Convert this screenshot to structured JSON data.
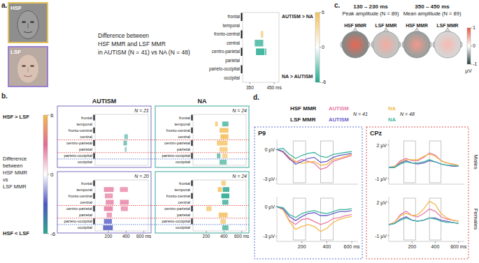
{
  "figure": {
    "images": [
      {
        "label": "HSF"
      },
      {
        "label": "LSF"
      }
    ]
  },
  "chart_data": [
    {
      "type": "heatmap",
      "panel": "a.",
      "title": [
        "Difference between",
        "HSF MMR and LSF MMR",
        "in AUTISM (N = 41) vs NA (N = 48)"
      ],
      "rows": [
        "frontal",
        "temporal",
        "fronto-central",
        "central",
        "centro-parietal",
        "parietal",
        "parieto-occipital",
        "occipital"
      ],
      "xlim": [
        320,
        470
      ],
      "xticks": [
        350,
        {
          "value": 450,
          "label": "450 ms"
        }
      ],
      "clusters": [
        {
          "row": 3,
          "start": 370,
          "end": 405,
          "t": -3.5
        },
        {
          "row": 4,
          "start": 375,
          "end": 410,
          "t": -4.5
        },
        {
          "row": 2,
          "start": 395,
          "end": 405,
          "t": 2.5
        },
        {
          "row": 4,
          "start": 412,
          "end": 418,
          "t": -3
        }
      ],
      "colors": [
        "#1fa88c",
        "#1fa88c",
        "#f3b94c",
        "#1fa88c"
      ],
      "colorbar": {
        "range": [
          -6,
          6
        ],
        "ticks": [
          6,
          0,
          -6
        ],
        "colors": [
          "#1fa88c",
          "#ffffff",
          "#f3c35a"
        ]
      },
      "annotations": [
        "AUTISM > NA",
        "NA > AUTISM"
      ]
    },
    {
      "type": "heatmap_grid",
      "panel": "b.",
      "columns": [
        "AUTISM",
        "NA"
      ],
      "rows": [
        "frontal",
        "temporal",
        "fronto-central",
        "central",
        "centro-parietal",
        "parietal",
        "parieto-occipital",
        "occipital"
      ],
      "xlim": [
        50,
        650
      ],
      "xticks": [
        200,
        400,
        {
          "value": 600,
          "label": "600 ms"
        }
      ],
      "colorbar": {
        "range": [
          -6,
          6
        ],
        "ticks": [
          6,
          0,
          -6
        ],
        "colors": [
          "#2aa88d",
          "#4c55c2",
          "#ffffff",
          "#e36b95",
          "#f3b94c"
        ]
      },
      "annotations": [
        "HSF > LSF",
        "HSF < LSF"
      ],
      "colorbar_title": [
        "Difference",
        "between",
        "HSF MMR",
        "vs",
        "LSF MMR"
      ],
      "maps": [
        {
          "n": "N = 21",
          "clusters": [
            {
              "row": 3,
              "start": 380,
              "end": 420,
              "t": -2.5
            },
            {
              "row": 4,
              "start": 370,
              "end": 410,
              "t": -3
            },
            {
              "row": 5,
              "start": 385,
              "end": 405,
              "t": -2
            }
          ],
          "colors": [
            "#3aa59a",
            "#3aa59a",
            "#3aa59a"
          ]
        },
        {
          "n": "N = 24",
          "clusters": [
            {
              "row": 1,
              "start": 300,
              "end": 330,
              "t": 3
            },
            {
              "row": 2,
              "start": 350,
              "end": 450,
              "t": 4
            },
            {
              "row": 3,
              "start": 360,
              "end": 450,
              "t": 4.5
            },
            {
              "row": 4,
              "start": 320,
              "end": 440,
              "t": 3.5
            },
            {
              "row": 5,
              "start": 350,
              "end": 440,
              "t": 3
            },
            {
              "row": 6,
              "start": 380,
              "end": 440,
              "t": 2.5
            },
            {
              "row": 1,
              "start": 380,
              "end": 450,
              "t": -3.5
            },
            {
              "row": 6,
              "start": 320,
              "end": 360,
              "t": -3
            },
            {
              "row": 7,
              "start": 350,
              "end": 430,
              "t": -3
            }
          ],
          "colors": [
            "#f3b94c",
            "#f3b94c",
            "#f3b94c",
            "#f3b94c",
            "#f3b94c",
            "#f3b94c",
            "#2aa88d",
            "#2aa88d",
            "#2aa88d"
          ]
        },
        {
          "n": "N = 20",
          "clusters": [
            {
              "row": 1,
              "start": 150,
              "end": 260,
              "t": 3.5
            },
            {
              "row": 2,
              "start": 160,
              "end": 250,
              "t": 3
            },
            {
              "row": 3,
              "start": 170,
              "end": 260,
              "t": 3.5
            },
            {
              "row": 4,
              "start": 150,
              "end": 250,
              "t": 4
            },
            {
              "row": 5,
              "start": 180,
              "end": 240,
              "t": 3
            },
            {
              "row": 1,
              "start": 330,
              "end": 420,
              "t": 3
            },
            {
              "row": 3,
              "start": 330,
              "end": 430,
              "t": 3.5
            },
            {
              "row": 4,
              "start": 340,
              "end": 420,
              "t": 3
            },
            {
              "row": 6,
              "start": 150,
              "end": 240,
              "t": -4
            },
            {
              "row": 7,
              "start": 140,
              "end": 250,
              "t": -4.5
            }
          ],
          "colors": [
            "#e36b95",
            "#e36b95",
            "#e36b95",
            "#e36b95",
            "#e36b95",
            "#e36b95",
            "#e36b95",
            "#e36b95",
            "#4c55c2",
            "#4c55c2"
          ]
        },
        {
          "n": "N = 24",
          "clusters": [
            {
              "row": 0,
              "start": 370,
              "end": 420,
              "t": 3
            },
            {
              "row": 1,
              "start": 330,
              "end": 375,
              "t": 4
            },
            {
              "row": 1,
              "start": 385,
              "end": 460,
              "t": -4.5
            },
            {
              "row": 2,
              "start": 370,
              "end": 460,
              "t": -5
            },
            {
              "row": 3,
              "start": 380,
              "end": 450,
              "t": -4
            },
            {
              "row": 4,
              "start": 200,
              "end": 260,
              "t": 3
            },
            {
              "row": 5,
              "start": 340,
              "end": 440,
              "t": 4
            },
            {
              "row": 6,
              "start": 360,
              "end": 420,
              "t": 3
            },
            {
              "row": 7,
              "start": 380,
              "end": 450,
              "t": -3.5
            }
          ],
          "colors": [
            "#f3b94c",
            "#f3b94c",
            "#2aa88d",
            "#2aa88d",
            "#2aa88d",
            "#f3b94c",
            "#f3b94c",
            "#f3b94c",
            "#2aa88d"
          ]
        }
      ]
    },
    {
      "type": "topomap",
      "panel": "c.",
      "windows": [
        {
          "title": "130 – 230 ms",
          "subtitle": "Peak amplitude (N = 89)",
          "maps": [
            {
              "label": "HSF MMR",
              "center": 0.9,
              "edge": -0.6
            },
            {
              "label": "LSF MMR",
              "center": 0.5,
              "edge": -0.3
            }
          ]
        },
        {
          "title": "350 – 450 ms",
          "subtitle": "Mean amplitude (N = 89)",
          "maps": [
            {
              "label": "HSF MMR",
              "center": 0.6,
              "edge": -0.5
            },
            {
              "label": "LSF MMR",
              "center": 0.4,
              "edge": -0.2
            }
          ]
        }
      ],
      "colorbar": {
        "range": [
          -1,
          1
        ],
        "ticks": [
          1,
          0,
          -1
        ],
        "unit": "µV",
        "colors": [
          "#24403f",
          "#ffffff",
          "#e8553f"
        ]
      }
    },
    {
      "type": "line",
      "panel": "d.",
      "x": [
        0,
        50,
        100,
        150,
        200,
        250,
        300,
        350,
        400,
        450,
        500,
        550,
        600
      ],
      "xlim": [
        0,
        650
      ],
      "xticks": [
        200,
        400,
        {
          "value": 600,
          "label": "600 ms"
        }
      ],
      "windows": [
        [
          130,
          230
        ],
        [
          350,
          450
        ]
      ],
      "legend_groups": [
        "HSF MMR",
        "LSF MMR"
      ],
      "legend_n": [
        "N = 41",
        "N = 48"
      ],
      "rows": [
        "Males",
        "Females"
      ],
      "series": [
        {
          "name": "AUTISM",
          "group": 0,
          "color": "#e97aa6"
        },
        {
          "name": "NA",
          "group": 0,
          "color": "#f2b84b"
        },
        {
          "name": "AUTISM",
          "group": 1,
          "color": "#6b5fc7"
        },
        {
          "name": "NA",
          "group": 1,
          "color": "#3fb6a0"
        }
      ],
      "electrodes": [
        {
          "name": "P9",
          "ylim": [
            -3.5,
            1
          ],
          "yticks": [
            {
              "value": 0,
              "label": "0 µV"
            },
            {
              "value": -3,
              "label": "-3 µV"
            }
          ],
          "panels": [
            {
              "values": [
                [
                  0,
                  -0.3,
                  -1.0,
                  -1.3,
                  -1.0,
                  -1.2,
                  -1.4,
                  -2.0,
                  -1.8,
                  -1.2,
                  -1.0,
                  -0.8,
                  -0.6
                ],
                [
                  0,
                  -0.2,
                  -0.8,
                  -1.2,
                  -1.4,
                  -1.3,
                  -1.2,
                  -1.6,
                  -1.5,
                  -1.0,
                  -0.9,
                  -0.7,
                  -0.5
                ],
                [
                  0,
                  -0.2,
                  -0.9,
                  -1.5,
                  -1.2,
                  -0.9,
                  -0.8,
                  -1.3,
                  -1.2,
                  -0.8,
                  -0.6,
                  -0.5,
                  -0.4
                ],
                [
                  0,
                  0.1,
                  -0.5,
                  -0.9,
                  -0.6,
                  -0.4,
                  -0.3,
                  -0.7,
                  -0.8,
                  -0.5,
                  -0.4,
                  -0.3,
                  -0.2
                ]
              ]
            },
            {
              "values": [
                [
                  0,
                  -0.3,
                  -1.4,
                  -1.8,
                  -1.3,
                  -1.2,
                  -1.5,
                  -1.8,
                  -1.6,
                  -1.2,
                  -1.1,
                  -0.9,
                  -0.8
                ],
                [
                  0,
                  -0.3,
                  -1.5,
                  -2.3,
                  -2.0,
                  -1.8,
                  -2.0,
                  -2.5,
                  -2.2,
                  -1.6,
                  -1.3,
                  -1.1,
                  -1.0
                ],
                [
                  0,
                  -0.2,
                  -1.0,
                  -1.4,
                  -1.0,
                  -0.7,
                  -0.6,
                  -0.9,
                  -0.9,
                  -0.7,
                  -0.5,
                  -0.5,
                  -0.4
                ],
                [
                  0,
                  -0.1,
                  -0.8,
                  -1.1,
                  -0.7,
                  -0.5,
                  -0.4,
                  -0.6,
                  -0.7,
                  -0.5,
                  -0.3,
                  -0.3,
                  -0.2
                ]
              ]
            }
          ]
        },
        {
          "name": "CPz",
          "ylim": [
            -1.5,
            2.5
          ],
          "yticks": [
            {
              "value": 2,
              "label": "2 µV"
            },
            {
              "value": -1,
              "label": "-1 µV"
            }
          ],
          "panels": [
            {
              "values": [
                [
                  0,
                  0.1,
                  0.6,
                  0.8,
                  0.6,
                  0.6,
                  0.9,
                  1.3,
                  1.1,
                  0.6,
                  0.4,
                  0.3,
                  0.2
                ],
                [
                  0,
                  0.1,
                  0.5,
                  0.7,
                  0.7,
                  0.7,
                  1.0,
                  1.2,
                  1.0,
                  0.6,
                  0.4,
                  0.3,
                  0.2
                ],
                [
                  0,
                  0.0,
                  0.4,
                  0.6,
                  0.4,
                  0.3,
                  0.4,
                  0.6,
                  0.5,
                  0.3,
                  0.2,
                  0.1,
                  0.1
                ],
                [
                  0,
                  0.0,
                  0.3,
                  0.5,
                  0.4,
                  0.4,
                  0.5,
                  0.7,
                  0.5,
                  0.3,
                  0.2,
                  0.2,
                  0.1
                ]
              ]
            },
            {
              "values": [
                [
                  0,
                  0.2,
                  0.9,
                  1.2,
                  0.8,
                  0.7,
                  1.0,
                  1.4,
                  1.2,
                  0.7,
                  0.5,
                  0.4,
                  0.3
                ],
                [
                  0,
                  0.2,
                  0.8,
                  1.0,
                  0.8,
                  0.9,
                  1.4,
                  2.1,
                  1.8,
                  1.0,
                  0.6,
                  0.4,
                  0.3
                ],
                [
                  0,
                  0.1,
                  0.5,
                  0.7,
                  0.4,
                  0.3,
                  0.4,
                  0.6,
                  0.6,
                  0.4,
                  0.3,
                  0.2,
                  0.1
                ],
                [
                  0,
                  0.1,
                  0.4,
                  0.6,
                  0.4,
                  0.3,
                  0.4,
                  0.6,
                  0.5,
                  0.3,
                  0.2,
                  0.2,
                  0.1
                ]
              ]
            }
          ]
        }
      ]
    }
  ]
}
